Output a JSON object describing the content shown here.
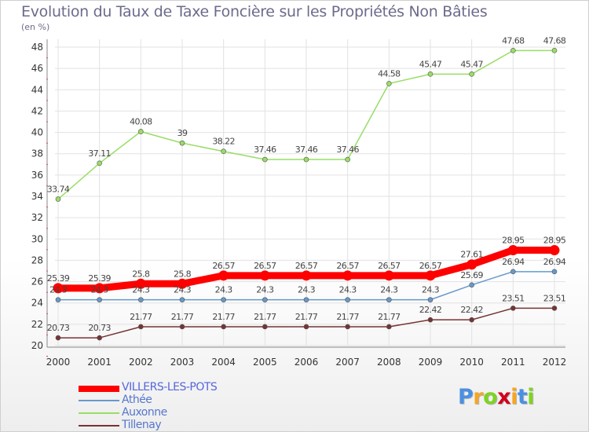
{
  "chart_data": {
    "type": "line",
    "title": "Evolution du Taux de Taxe Foncière sur les Propriétés Non Bâties",
    "ylabel": "(en %)",
    "xlabel": "",
    "ylim": [
      20,
      48
    ],
    "yticks": [
      20,
      22,
      24,
      26,
      28,
      30,
      32,
      34,
      36,
      38,
      40,
      42,
      44,
      46,
      48
    ],
    "categories": [
      "2000",
      "2001",
      "2002",
      "2003",
      "2004",
      "2005",
      "2006",
      "2007",
      "2008",
      "2009",
      "2010",
      "2011",
      "2012"
    ],
    "series": [
      {
        "name": "VILLERS-LES-POTS",
        "color": "#ff0000",
        "values": [
          25.39,
          25.39,
          25.8,
          25.8,
          26.57,
          26.57,
          26.57,
          26.57,
          26.57,
          26.57,
          27.61,
          28.95,
          28.95
        ],
        "labels": [
          "25.39",
          "25.39",
          "25.8",
          "25.8",
          "26.57",
          "26.57",
          "26.57",
          "26.57",
          "26.57",
          "26.57",
          "27.61",
          "28.95",
          "28.95"
        ]
      },
      {
        "name": "Athée",
        "color": "#6699cc",
        "values": [
          24.3,
          24.3,
          24.3,
          24.3,
          24.3,
          24.3,
          24.3,
          24.3,
          24.3,
          24.3,
          25.69,
          26.94,
          26.94
        ],
        "labels": [
          "24.3",
          "24.3",
          "24.3",
          "24.3",
          "24.3",
          "24.3",
          "24.3",
          "24.3",
          "24.3",
          "24.3",
          "25.69",
          "26.94",
          "26.94"
        ]
      },
      {
        "name": "Auxonne",
        "color": "#99dd66",
        "values": [
          33.74,
          37.11,
          40.08,
          39,
          38.22,
          37.46,
          37.46,
          37.46,
          44.58,
          45.47,
          45.47,
          47.68,
          47.68
        ],
        "labels": [
          "33.74",
          "37.11",
          "40.08",
          "39",
          "38.22",
          "37.46",
          "37.46",
          "37.46",
          "44.58",
          "45.47",
          "45.47",
          "47.68",
          "47.68"
        ]
      },
      {
        "name": "Tillenay",
        "color": "#773333",
        "values": [
          20.73,
          20.73,
          21.77,
          21.77,
          21.77,
          21.77,
          21.77,
          21.77,
          21.77,
          22.42,
          22.42,
          23.51,
          23.51
        ],
        "labels": [
          "20.73",
          "20.73",
          "21.77",
          "21.77",
          "21.77",
          "21.77",
          "21.77",
          "21.77",
          "21.77",
          "22.42",
          "22.42",
          "23.51",
          "23.51"
        ]
      }
    ]
  },
  "brand": {
    "letters": [
      "P",
      "r",
      "o",
      "x",
      "i",
      "t",
      "i"
    ],
    "colors": [
      "#4a90e2",
      "#f5a623",
      "#7ed321",
      "#d0021b",
      "#f5a623",
      "#4a90e2",
      "#7ed321"
    ]
  }
}
